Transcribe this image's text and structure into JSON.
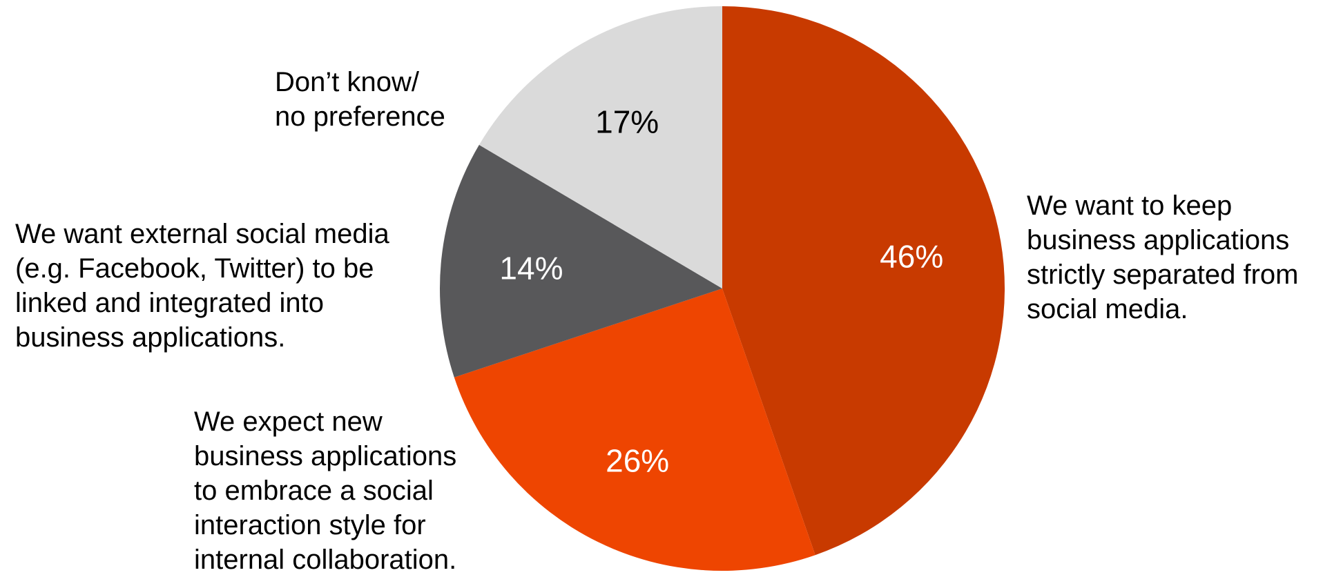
{
  "chart_data": {
    "type": "pie",
    "title": "",
    "slices": [
      {
        "label": "We want to keep\nbusiness applications\nstrictly separated from\nsocial media.",
        "value": 46,
        "value_label": "46%",
        "color": "#C83A00",
        "label_color": "#FFFFFF"
      },
      {
        "label": "We expect new\nbusiness applications\nto embrace a social\ninteraction style for\ninternal collaboration.",
        "value": 26,
        "value_label": "26%",
        "color": "#EE4501",
        "label_color": "#FFFFFF"
      },
      {
        "label": "We want external social media\n(e.g. Facebook, Twitter) to be\nlinked and integrated into\nbusiness applications.",
        "value": 14,
        "value_label": "14%",
        "color": "#58585A",
        "label_color": "#FFFFFF"
      },
      {
        "label": "Don’t know/\nno preference",
        "value": 17,
        "value_label": "17%",
        "color": "#DADADA",
        "label_color": "#000000"
      }
    ],
    "start": "12 o'clock",
    "direction": "clockwise",
    "legend": "none"
  }
}
